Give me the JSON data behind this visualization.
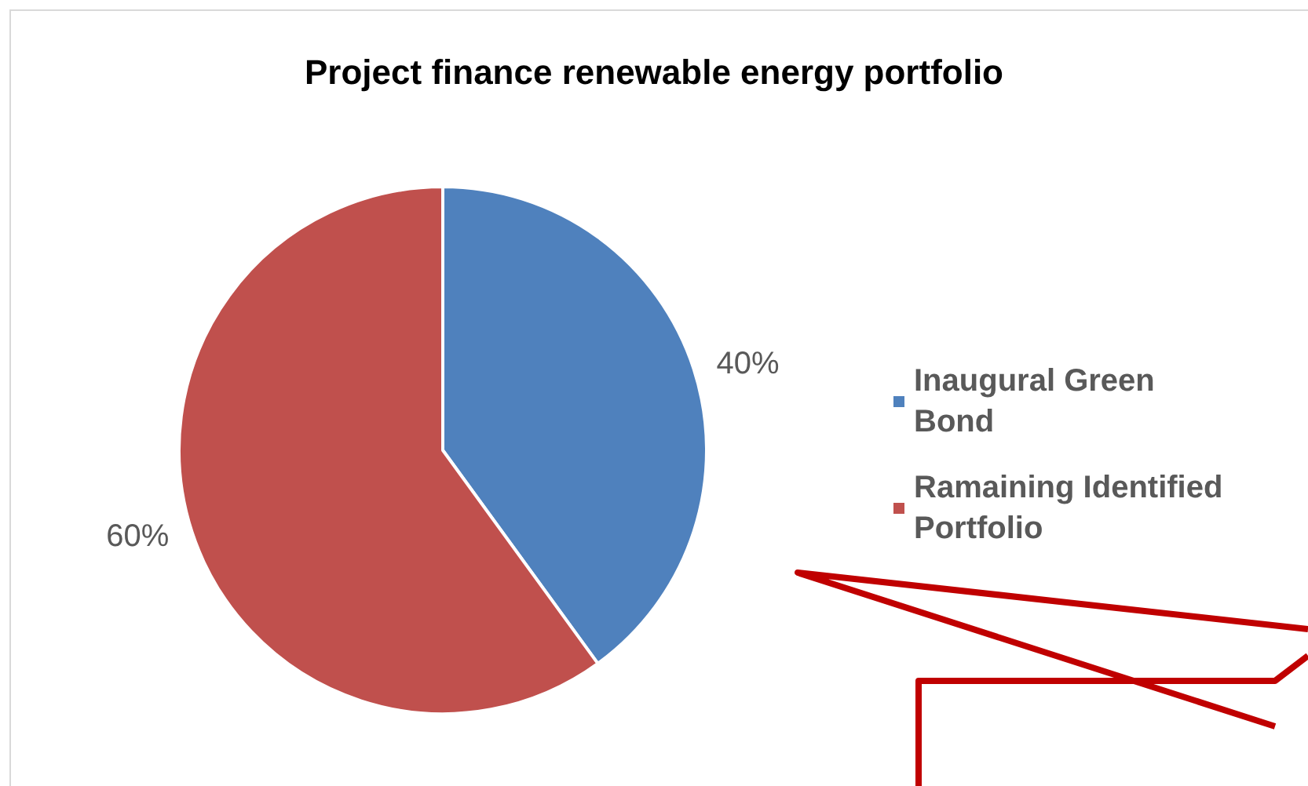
{
  "chart_data": {
    "type": "pie",
    "title": "Project finance renewable energy portfolio",
    "categories": [
      "Inaugural Green Bond",
      "Ramaining Identified Portfolio"
    ],
    "values": [
      40,
      60
    ],
    "colors": [
      "#4f81bd",
      "#c0504d"
    ],
    "legend": "right",
    "value_labels": [
      "40%",
      "60%"
    ]
  }
}
